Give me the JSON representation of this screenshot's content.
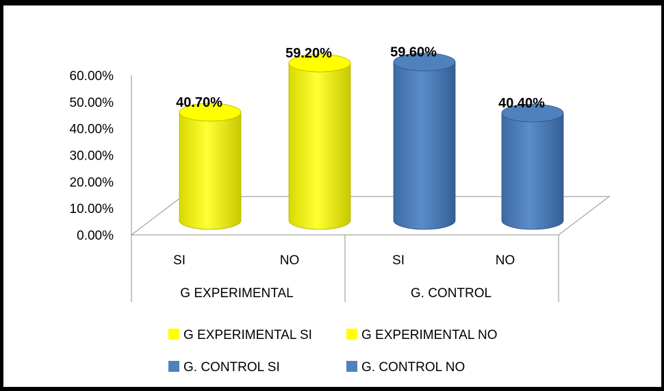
{
  "chart_data": {
    "type": "bar",
    "style": "3d-cylinder",
    "groups": [
      "G EXPERIMENTAL",
      "G. CONTROL"
    ],
    "categories": [
      "SI",
      "NO",
      "SI",
      "NO"
    ],
    "series": [
      {
        "name": "G EXPERIMENTAL SI",
        "group": "G EXPERIMENTAL",
        "category": "SI",
        "value": 40.7,
        "label": "40.70%",
        "color": "#ffff00"
      },
      {
        "name": "G EXPERIMENTAL NO",
        "group": "G EXPERIMENTAL",
        "category": "NO",
        "value": 59.2,
        "label": "59.20%",
        "color": "#ffff00"
      },
      {
        "name": "G. CONTROL SI",
        "group": "G. CONTROL",
        "category": "SI",
        "value": 59.6,
        "label": "59.60%",
        "color": "#4f81bd"
      },
      {
        "name": "G. CONTROL NO",
        "group": "G. CONTROL",
        "category": "NO",
        "value": 40.4,
        "label": "40.40%",
        "color": "#4f81bd"
      }
    ],
    "y_ticks": [
      "0.00%",
      "10.00%",
      "20.00%",
      "30.00%",
      "40.00%",
      "50.00%",
      "60.00%"
    ],
    "ylim": [
      0,
      60
    ],
    "grid": false,
    "legend_position": "bottom"
  }
}
